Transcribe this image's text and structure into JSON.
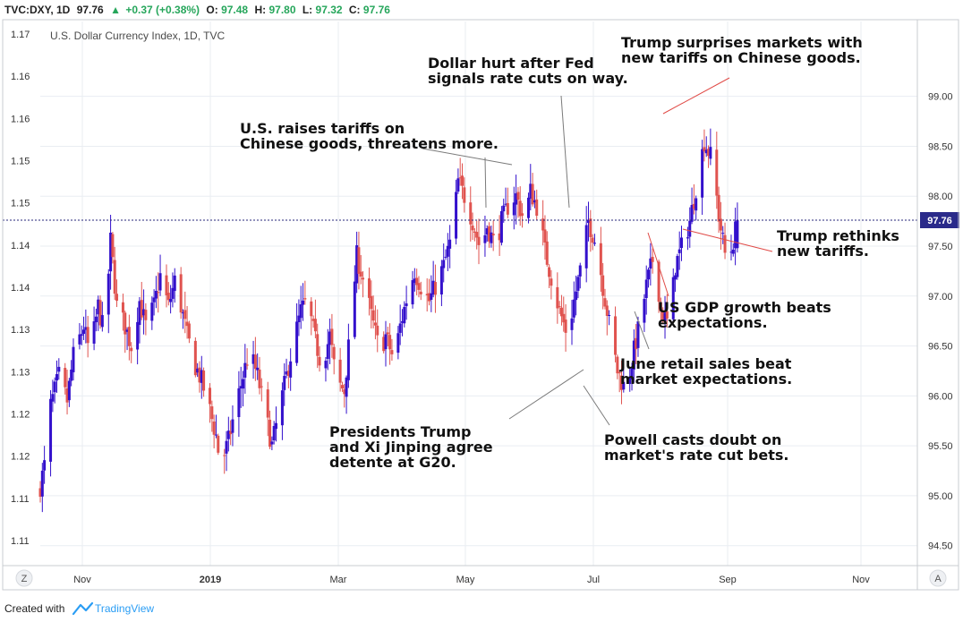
{
  "header": {
    "symbol": "TVC:DXY, 1D",
    "last": "97.76",
    "arrow": "▲",
    "change": "+0.37 (+0.38%)",
    "o_label": "O:",
    "o_value": "97.48",
    "h_label": "H:",
    "h_value": "97.80",
    "l_label": "L:",
    "l_value": "97.32",
    "c_label": "C:",
    "c_value": "97.76"
  },
  "footer": {
    "created_with": "Created with",
    "brand": "TradingView"
  },
  "corner_buttons": {
    "left": "Z",
    "right": "A"
  },
  "colors": {
    "up": "#3310cc",
    "down": "#e0534f",
    "grid": "#e9edf2",
    "price_line": "#27277a",
    "price_tag": "#2a2a8a",
    "header_green": "#26a65b",
    "annotation_line_red": "#e04a46",
    "annotation_line_gray": "#7a7a7a"
  },
  "chart_data": {
    "type": "candlestick",
    "title": "U.S. Dollar Currency Index, 1D, TVC",
    "x_ticks": [
      "Nov",
      "2019",
      "Mar",
      "May",
      "Jul",
      "Sep",
      "Nov"
    ],
    "right_axis": {
      "ticks": [
        "94.50",
        "95.00",
        "95.50",
        "96.00",
        "96.50",
        "97.00",
        "97.50",
        "98.00",
        "98.50",
        "99.00"
      ],
      "range": [
        94.3,
        99.75
      ]
    },
    "left_axis": {
      "ticks": [
        "1.11",
        "1.11",
        "1.12",
        "1.12",
        "1.13",
        "1.13",
        "1.14",
        "1.14",
        "1.15",
        "1.15",
        "1.16",
        "1.16",
        "1.17"
      ]
    },
    "last_price": 97.76,
    "last_price_label": "97.76",
    "x_range": [
      "2018-10-10",
      "2019-12-08"
    ],
    "closes": [
      [
        "2018-10-10",
        95.1
      ],
      [
        "2018-10-13",
        95.4
      ],
      [
        "2018-10-15",
        95.9
      ],
      [
        "2018-10-19",
        96.2
      ],
      [
        "2018-10-23",
        95.95
      ],
      [
        "2018-10-26",
        96.4
      ],
      [
        "2018-10-31",
        96.7
      ],
      [
        "2018-11-03",
        96.4
      ],
      [
        "2018-11-07",
        96.9
      ],
      [
        "2018-11-10",
        96.6
      ],
      [
        "2018-11-13",
        97.55
      ],
      [
        "2018-11-16",
        96.9
      ],
      [
        "2018-11-20",
        96.7
      ],
      [
        "2018-11-23",
        96.5
      ],
      [
        "2018-11-27",
        96.95
      ],
      [
        "2018-11-30",
        96.7
      ],
      [
        "2018-12-04",
        96.9
      ],
      [
        "2018-12-07",
        97.2
      ],
      [
        "2018-12-11",
        96.9
      ],
      [
        "2018-12-14",
        97.15
      ],
      [
        "2018-12-17",
        96.9
      ],
      [
        "2018-12-20",
        96.6
      ],
      [
        "2018-12-24",
        96.3
      ],
      [
        "2018-12-27",
        96.15
      ],
      [
        "2018-12-31",
        95.85
      ],
      [
        "2019-01-03",
        95.6
      ],
      [
        "2019-01-05",
        95.3
      ],
      [
        "2019-01-09",
        95.55
      ],
      [
        "2019-01-12",
        95.85
      ],
      [
        "2019-01-16",
        96.2
      ],
      [
        "2019-01-19",
        96.45
      ],
      [
        "2019-01-23",
        96.2
      ],
      [
        "2019-01-26",
        95.9
      ],
      [
        "2019-01-30",
        95.5
      ],
      [
        "2019-02-02",
        95.8
      ],
      [
        "2019-02-05",
        96.1
      ],
      [
        "2019-02-09",
        96.5
      ],
      [
        "2019-02-13",
        96.85
      ],
      [
        "2019-02-16",
        96.95
      ],
      [
        "2019-02-20",
        96.55
      ],
      [
        "2019-02-23",
        96.3
      ],
      [
        "2019-02-27",
        96.6
      ],
      [
        "2019-03-02",
        96.15
      ],
      [
        "2019-03-06",
        96.05
      ],
      [
        "2019-03-09",
        96.7
      ],
      [
        "2019-03-12",
        97.4
      ],
      [
        "2019-03-16",
        97.1
      ],
      [
        "2019-03-19",
        96.8
      ],
      [
        "2019-03-23",
        96.45
      ],
      [
        "2019-03-26",
        96.6
      ],
      [
        "2019-03-30",
        96.35
      ],
      [
        "2019-04-02",
        96.7
      ],
      [
        "2019-04-06",
        97.05
      ],
      [
        "2019-04-09",
        97.25
      ],
      [
        "2019-04-13",
        97.05
      ],
      [
        "2019-04-16",
        96.95
      ],
      [
        "2019-04-20",
        97.15
      ],
      [
        "2019-04-23",
        97.3
      ],
      [
        "2019-04-27",
        97.6
      ],
      [
        "2019-04-30",
        98.15
      ],
      [
        "2019-05-04",
        97.95
      ],
      [
        "2019-05-07",
        97.75
      ],
      [
        "2019-05-11",
        97.45
      ],
      [
        "2019-05-14",
        97.7
      ],
      [
        "2019-05-18",
        97.5
      ],
      [
        "2019-05-21",
        97.75
      ],
      [
        "2019-05-25",
        97.95
      ],
      [
        "2019-05-28",
        98.0
      ],
      [
        "2019-06-01",
        97.75
      ],
      [
        "2019-06-04",
        98.05
      ],
      [
        "2019-06-08",
        97.85
      ],
      [
        "2019-06-11",
        97.45
      ],
      [
        "2019-06-15",
        97.1
      ],
      [
        "2019-06-18",
        96.85
      ],
      [
        "2019-06-22",
        96.6
      ],
      [
        "2019-06-25",
        96.95
      ],
      [
        "2019-06-29",
        97.35
      ],
      [
        "2019-07-02",
        97.75
      ],
      [
        "2019-07-06",
        97.5
      ],
      [
        "2019-07-09",
        97.1
      ],
      [
        "2019-07-13",
        96.6
      ],
      [
        "2019-07-16",
        96.25
      ],
      [
        "2019-07-20",
        96.05
      ],
      [
        "2019-07-23",
        96.35
      ],
      [
        "2019-07-27",
        96.75
      ],
      [
        "2019-07-30",
        97.1
      ],
      [
        "2019-08-03",
        97.45
      ],
      [
        "2019-08-06",
        96.85
      ],
      [
        "2019-08-10",
        96.7
      ],
      [
        "2019-08-13",
        97.3
      ],
      [
        "2019-08-17",
        97.55
      ],
      [
        "2019-08-20",
        97.75
      ],
      [
        "2019-08-24",
        98.2
      ],
      [
        "2019-08-27",
        98.55
      ],
      [
        "2019-08-31",
        98.35
      ],
      [
        "2019-09-03",
        97.8
      ],
      [
        "2019-09-07",
        97.3
      ],
      [
        "2019-09-10",
        97.55
      ],
      [
        "2019-09-12",
        97.76
      ]
    ],
    "annotations": [
      "Trump surprises markets with\nnew tariffs on Chinese goods.",
      "Dollar hurt after Fed\nsignals rate cuts on way.",
      "U.S. raises tariffs on\nChinese goods, threatens more.",
      "Trump rethinks\nnew tariffs.",
      "US GDP growth beats\nexpectations.",
      "June retail sales beat\nmarket expectations.",
      "Presidents Trump\nand Xi Jinping agree\ndetente at G20.",
      "Powell casts doubt on\nmarket's rate cut bets."
    ]
  }
}
